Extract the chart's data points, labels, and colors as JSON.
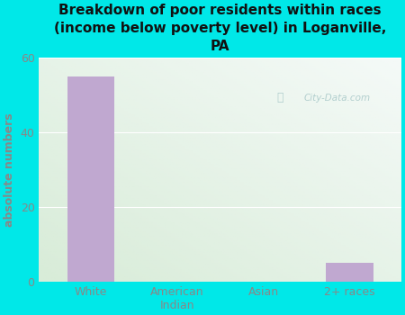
{
  "categories": [
    "White",
    "American\nIndian",
    "Asian",
    "2+ races"
  ],
  "values": [
    55,
    0,
    0,
    5
  ],
  "bar_color": "#c0a8d0",
  "title": "Breakdown of poor residents within races\n(income below poverty level) in Loganville,\nPA",
  "ylabel": "absolute numbers",
  "ylim": [
    0,
    60
  ],
  "yticks": [
    0,
    20,
    40,
    60
  ],
  "bg_color": "#00e8e8",
  "plot_bg_left": "#d8ecd8",
  "plot_bg_right": "#f5faf8",
  "title_color": "#111111",
  "label_color": "#888888",
  "tick_color": "#888888",
  "watermark_text": "City-Data.com",
  "title_fontsize": 11,
  "ylabel_fontsize": 9
}
